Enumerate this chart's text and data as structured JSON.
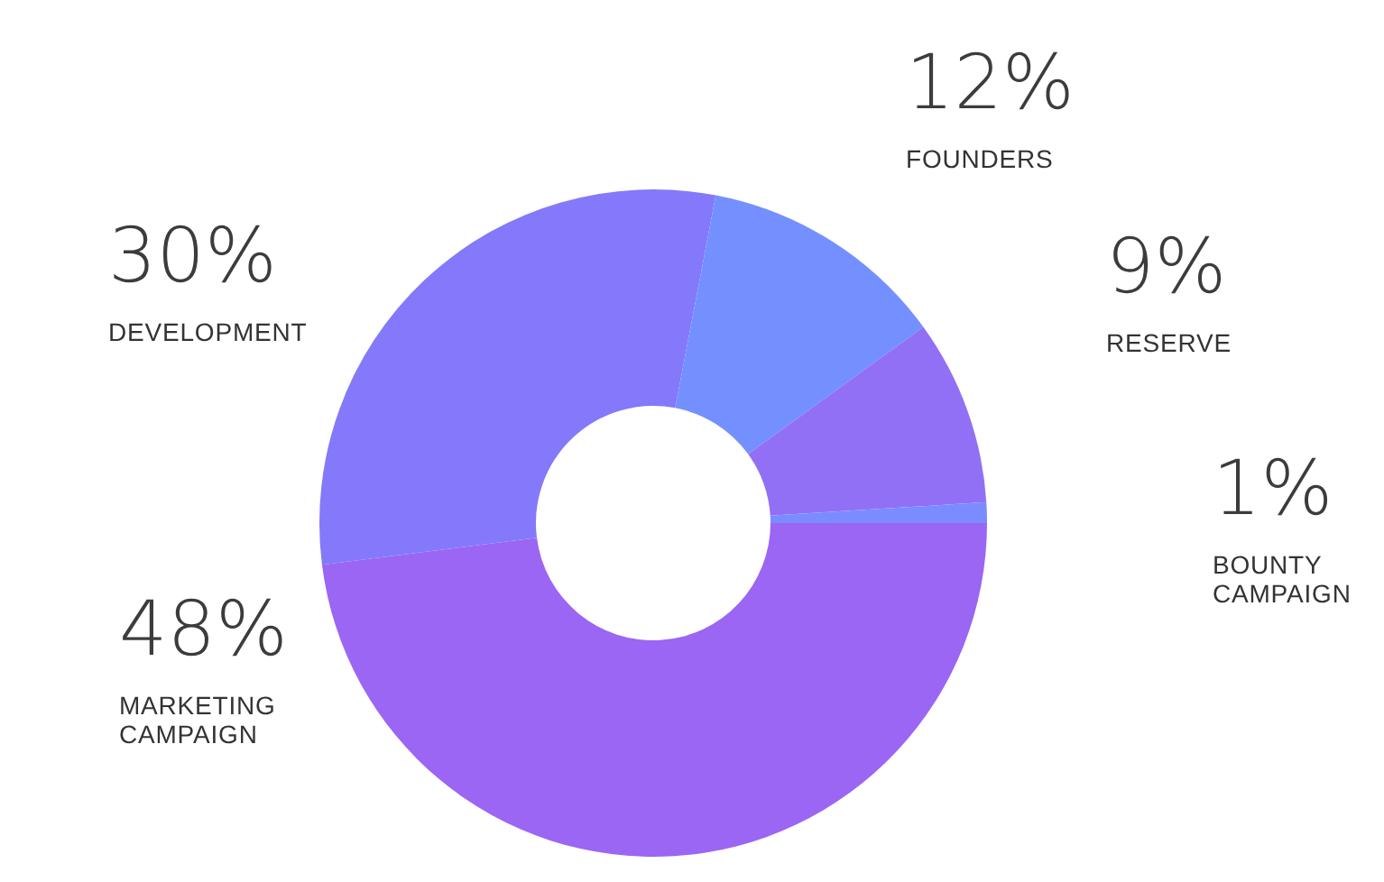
{
  "chart_data": {
    "type": "donut",
    "categories": [
      "MARKETING CAMPAIGN",
      "DEVELOPMENT",
      "FOUNDERS",
      "RESERVE",
      "BOUNTY CAMPAIGN"
    ],
    "values": [
      48,
      30,
      12,
      9,
      1
    ],
    "colors": [
      "#9a66f3",
      "#8379fa",
      "#7490ff",
      "#9270f5",
      "#7a8cff"
    ],
    "value_labels": [
      "48%",
      "30%",
      "12%",
      "9%",
      "1%"
    ]
  }
}
